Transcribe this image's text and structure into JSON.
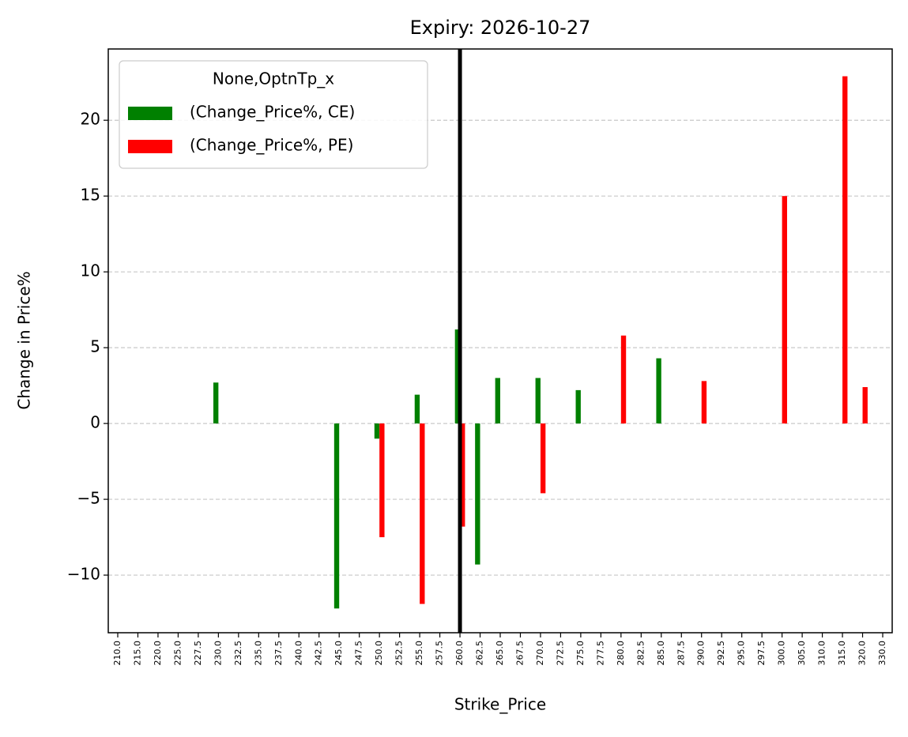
{
  "chart_data": {
    "type": "bar",
    "title": "Expiry: 2026-10-27",
    "xlabel": "Strike_Price",
    "ylabel": "Change in Price%",
    "categories": [
      "210.0",
      "215.0",
      "220.0",
      "225.0",
      "227.5",
      "230.0",
      "232.5",
      "235.0",
      "237.5",
      "240.0",
      "242.5",
      "245.0",
      "247.5",
      "250.0",
      "252.5",
      "255.0",
      "257.5",
      "260.0",
      "262.5",
      "265.0",
      "267.5",
      "270.0",
      "272.5",
      "275.0",
      "277.5",
      "280.0",
      "282.5",
      "285.0",
      "287.5",
      "290.0",
      "292.5",
      "295.0",
      "297.5",
      "300.0",
      "305.0",
      "310.0",
      "315.0",
      "320.0",
      "330.0"
    ],
    "legend_title": "None,OptnTp_x",
    "legend_position": "upper left",
    "series": [
      {
        "name": "(Change_Price%, CE)",
        "color": "#008000",
        "values": [
          null,
          null,
          null,
          null,
          null,
          2.7,
          null,
          null,
          null,
          null,
          null,
          -12.2,
          null,
          -1.0,
          null,
          1.9,
          null,
          6.2,
          -9.3,
          3.0,
          null,
          3.0,
          null,
          2.2,
          null,
          null,
          null,
          4.3,
          null,
          null,
          null,
          null,
          null,
          null,
          null,
          null,
          null,
          null,
          null
        ]
      },
      {
        "name": "(Change_Price%, PE)",
        "color": "#ff0000",
        "values": [
          null,
          null,
          null,
          null,
          null,
          null,
          null,
          null,
          null,
          null,
          null,
          null,
          null,
          -7.5,
          null,
          -11.9,
          null,
          -6.8,
          null,
          null,
          null,
          -4.6,
          null,
          null,
          null,
          5.8,
          null,
          null,
          null,
          2.8,
          null,
          null,
          null,
          15.0,
          null,
          null,
          22.9,
          2.4,
          null
        ]
      }
    ],
    "vline": "260.0",
    "ylim": [
      -13.8,
      24.7
    ],
    "yticks": [
      {
        "value": -10,
        "label": "−10"
      },
      {
        "value": -5,
        "label": "−5"
      },
      0,
      5,
      10,
      15,
      20
    ],
    "grid": true
  }
}
